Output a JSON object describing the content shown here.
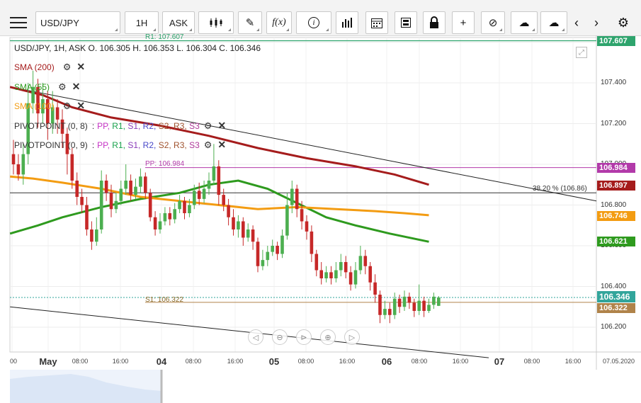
{
  "toolbar": {
    "symbol": "USD/JPY",
    "timeframe": "1H",
    "price_type": "ASK",
    "chart_type_icon": "candles-icon",
    "draw_icon": "pencil-icon",
    "fx_label": "f(x)",
    "info_icon": "info-icon",
    "indicator_icon": "bars-icon",
    "calendar_icon": "calendar-icon",
    "template_icon": "template-icon",
    "lock_icon": "lock-icon",
    "crosshair_icon": "crosshair-icon",
    "zoom_icon": "zoom-icon",
    "upload_icon": "cloud-upload-icon",
    "download_icon": "cloud-download-icon",
    "prev_icon": "chevron-left-icon",
    "next_icon": "chevron-right-icon",
    "settings_icon": "gear-icon"
  },
  "header": {
    "ohlc": "USD/JPY, 1H, ASK   O. 106.305 H. 106.353 L. 106.304 C. 106.346"
  },
  "indicators": [
    {
      "label": "SMA (200)",
      "color": "#a51c1c"
    },
    {
      "label": "SMA (55)",
      "color": "#2e9a1e"
    },
    {
      "label": "SMA (100)",
      "color": "#f39c12"
    }
  ],
  "pivots": [
    {
      "prefix": "PIVOTPOINT (0, 8)",
      "sep": ":",
      "items": [
        "PP,",
        "R1,",
        "S1,",
        "R2,",
        "S2,",
        "R3,",
        "S3"
      ]
    },
    {
      "prefix": "PIVOTPOINT (0, 9)",
      "sep": ":",
      "items": [
        "PP,",
        "R1,",
        "S1,",
        "R2,",
        "S2,",
        "R3,",
        "S3"
      ]
    }
  ],
  "pivot_colors": [
    "#c633c6",
    "#18a24c",
    "#8a3ab9",
    "#4747c9",
    "#a0522d",
    "#a0522d",
    "#b03a9a"
  ],
  "lines": {
    "r1": "R1: 107.607",
    "pp": "PP: 106.984",
    "s1": "S1: 106.322",
    "fib": "38.20 % (106.86)"
  },
  "price_tags": [
    {
      "text": "107.607",
      "value": 107.607,
      "color": "#2ea46d"
    },
    {
      "text": "106.984",
      "value": 106.984,
      "color": "#b23aa9"
    },
    {
      "text": "106.897",
      "value": 106.897,
      "color": "#a51c1c"
    },
    {
      "text": "106.746",
      "value": 106.746,
      "color": "#f39c12"
    },
    {
      "text": "106.621",
      "value": 106.621,
      "color": "#2e9a1e"
    },
    {
      "text": "106.346",
      "value": 106.346,
      "color": "#32a59b"
    },
    {
      "text": "106.322",
      "value": 106.322,
      "color": "#b0834a"
    }
  ],
  "chart_data": {
    "type": "candlestick",
    "symbol": "USD/JPY",
    "timeframe": "1H",
    "yaxis_ticks": [
      "107.400",
      "107.200",
      "107.000",
      "106.800",
      "106.600",
      "106.400",
      "106.200"
    ],
    "ylim": [
      106.05,
      107.62
    ],
    "xaxis_ticks": [
      {
        "label": "00",
        "big": false
      },
      {
        "label": "May",
        "big": true
      },
      {
        "label": "08:00",
        "big": false
      },
      {
        "label": "16:00",
        "big": false
      },
      {
        "label": "04",
        "big": true
      },
      {
        "label": "08:00",
        "big": false
      },
      {
        "label": "16:00",
        "big": false
      },
      {
        "label": "05",
        "big": true
      },
      {
        "label": "08:00",
        "big": false
      },
      {
        "label": "16:00",
        "big": false
      },
      {
        "label": "06",
        "big": true
      },
      {
        "label": "08:00",
        "big": false
      },
      {
        "label": "16:00",
        "big": false
      },
      {
        "label": "07",
        "big": true
      },
      {
        "label": "08:00",
        "big": false
      },
      {
        "label": "16:00",
        "big": false
      },
      {
        "label": "07.05.2020",
        "big": false
      }
    ],
    "last_close": 106.346,
    "levels": {
      "R1": 107.607,
      "PP": 106.984,
      "S1": 106.322,
      "fib_38_2": 106.86
    },
    "candles": [
      [
        107.05,
        107.0,
        107.12,
        106.95
      ],
      [
        107.0,
        106.95,
        107.05,
        106.92
      ],
      [
        106.95,
        107.05,
        107.1,
        106.9
      ],
      [
        107.05,
        107.3,
        107.4,
        107.0
      ],
      [
        107.3,
        107.38,
        107.46,
        107.25
      ],
      [
        107.38,
        107.25,
        107.42,
        107.18
      ],
      [
        107.25,
        107.32,
        107.4,
        107.2
      ],
      [
        107.32,
        107.2,
        107.36,
        107.12
      ],
      [
        107.2,
        107.28,
        107.36,
        107.15
      ],
      [
        107.28,
        107.22,
        107.32,
        107.15
      ],
      [
        107.22,
        107.15,
        107.27,
        107.08
      ],
      [
        107.15,
        107.05,
        107.18,
        106.95
      ],
      [
        107.05,
        106.92,
        107.08,
        106.88
      ],
      [
        106.92,
        106.84,
        106.96,
        106.8
      ],
      [
        106.84,
        106.8,
        106.88,
        106.76
      ],
      [
        106.8,
        106.68,
        106.84,
        106.65
      ],
      [
        106.68,
        106.62,
        106.72,
        106.58
      ],
      [
        106.62,
        106.68,
        106.74,
        106.6
      ],
      [
        106.68,
        106.92,
        106.97,
        106.66
      ],
      [
        106.92,
        106.86,
        106.95,
        106.82
      ],
      [
        106.86,
        106.78,
        106.9,
        106.74
      ],
      [
        106.78,
        106.82,
        106.86,
        106.76
      ],
      [
        106.82,
        106.88,
        106.92,
        106.8
      ],
      [
        106.88,
        106.92,
        107.0,
        106.85
      ],
      [
        106.92,
        106.85,
        106.95,
        106.82
      ],
      [
        106.85,
        106.89,
        106.93,
        106.83
      ],
      [
        106.89,
        106.94,
        106.98,
        106.86
      ],
      [
        106.94,
        106.86,
        106.96,
        106.83
      ],
      [
        106.86,
        106.74,
        106.88,
        106.72
      ],
      [
        106.74,
        106.68,
        106.77,
        106.65
      ],
      [
        106.68,
        106.72,
        106.76,
        106.66
      ],
      [
        106.72,
        106.76,
        106.79,
        106.7
      ],
      [
        106.76,
        106.73,
        106.79,
        106.7
      ],
      [
        106.73,
        106.78,
        106.81,
        106.71
      ],
      [
        106.78,
        106.82,
        106.85,
        106.76
      ],
      [
        106.82,
        106.76,
        106.84,
        106.73
      ],
      [
        106.76,
        106.8,
        106.83,
        106.74
      ],
      [
        106.8,
        106.87,
        106.9,
        106.78
      ],
      [
        106.87,
        106.83,
        106.91,
        106.8
      ],
      [
        106.83,
        106.88,
        106.92,
        106.81
      ],
      [
        106.88,
        106.92,
        106.96,
        106.85
      ],
      [
        106.92,
        106.99,
        107.1,
        106.9
      ],
      [
        106.99,
        106.85,
        107.02,
        106.8
      ],
      [
        106.85,
        106.8,
        106.88,
        106.77
      ],
      [
        106.8,
        106.74,
        106.83,
        106.7
      ],
      [
        106.74,
        106.68,
        106.78,
        106.65
      ],
      [
        106.68,
        106.72,
        106.75,
        106.64
      ],
      [
        106.72,
        106.64,
        106.74,
        106.6
      ],
      [
        106.64,
        106.68,
        106.71,
        106.62
      ],
      [
        106.68,
        106.62,
        106.7,
        106.58
      ],
      [
        106.62,
        106.5,
        106.64,
        106.47
      ],
      [
        106.5,
        106.53,
        106.58,
        106.48
      ],
      [
        106.53,
        106.57,
        106.6,
        106.5
      ],
      [
        106.57,
        106.6,
        106.63,
        106.55
      ],
      [
        106.6,
        106.56,
        106.62,
        106.53
      ],
      [
        106.56,
        106.65,
        106.68,
        106.54
      ],
      [
        106.65,
        106.8,
        106.86,
        106.63
      ],
      [
        106.8,
        106.88,
        106.92,
        106.76
      ],
      [
        106.88,
        106.78,
        106.9,
        106.74
      ],
      [
        106.78,
        106.72,
        106.82,
        106.68
      ],
      [
        106.72,
        106.67,
        106.75,
        106.63
      ],
      [
        106.67,
        106.56,
        106.7,
        106.52
      ],
      [
        106.56,
        106.48,
        106.58,
        106.45
      ],
      [
        106.48,
        106.44,
        106.52,
        106.41
      ],
      [
        106.44,
        106.47,
        106.5,
        106.42
      ],
      [
        106.47,
        106.44,
        106.5,
        106.41
      ],
      [
        106.44,
        106.48,
        106.52,
        106.42
      ],
      [
        106.48,
        106.52,
        106.56,
        106.45
      ],
      [
        106.52,
        106.47,
        106.55,
        106.44
      ],
      [
        106.47,
        106.41,
        106.5,
        106.38
      ],
      [
        106.41,
        106.48,
        106.52,
        106.39
      ],
      [
        106.48,
        106.55,
        106.6,
        106.46
      ],
      [
        106.55,
        106.5,
        106.58,
        106.46
      ],
      [
        106.5,
        106.42,
        106.52,
        106.38
      ],
      [
        106.42,
        106.36,
        106.46,
        106.32
      ],
      [
        106.36,
        106.26,
        106.38,
        106.22
      ],
      [
        106.26,
        106.29,
        106.33,
        106.24
      ],
      [
        106.29,
        106.26,
        106.32,
        106.22
      ],
      [
        106.26,
        106.34,
        106.37,
        106.24
      ],
      [
        106.34,
        106.3,
        106.36,
        106.27
      ],
      [
        106.3,
        106.35,
        106.38,
        106.28
      ],
      [
        106.35,
        106.32,
        106.37,
        106.29
      ],
      [
        106.32,
        106.28,
        106.34,
        106.25
      ],
      [
        106.28,
        106.33,
        106.41,
        106.26
      ],
      [
        106.33,
        106.28,
        106.35,
        106.25
      ],
      [
        106.28,
        106.31,
        106.34,
        106.27
      ],
      [
        106.31,
        106.35,
        106.37,
        106.29
      ],
      [
        106.305,
        106.346,
        106.353,
        106.304
      ]
    ]
  }
}
